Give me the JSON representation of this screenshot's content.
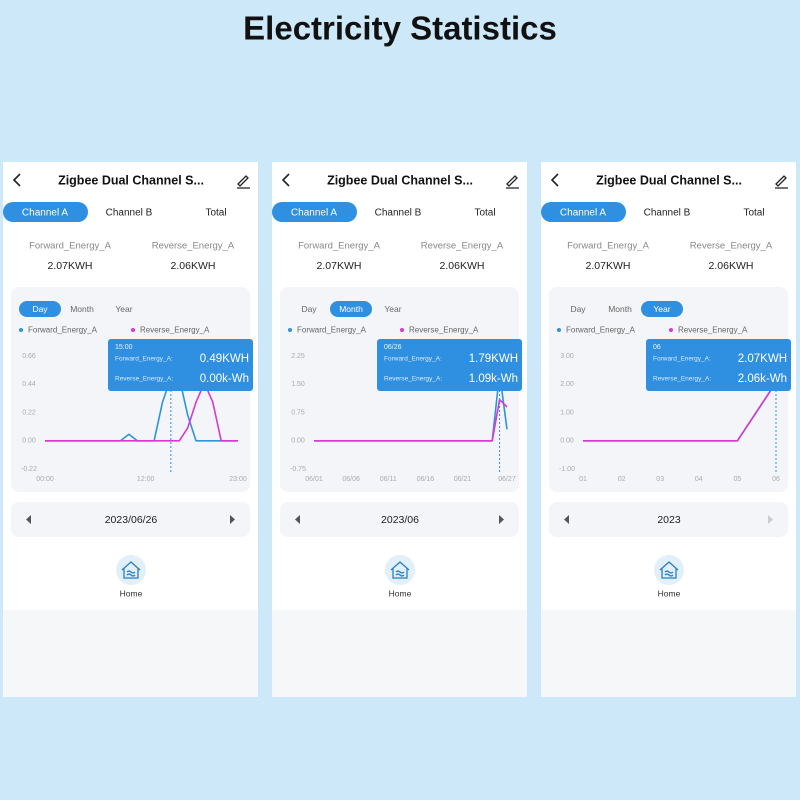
{
  "title": "Electricity Statistics",
  "screens": [
    {
      "header": "Zigbee Dual Channel S...",
      "tabs": [
        "Channel A",
        "Channel B",
        "Total"
      ],
      "active_tab": 0,
      "stats": [
        {
          "label": "Forward_Energy_A",
          "value": "2.07KWH"
        },
        {
          "label": "Reverse_Energy_A",
          "value": "2.06KWH"
        }
      ],
      "periods": [
        "Day",
        "Month",
        "Year"
      ],
      "active_period": 0,
      "chart": {
        "type": "line",
        "categories": [
          "00:00",
          null,
          null,
          null,
          null,
          null,
          null,
          null,
          null,
          null,
          null,
          null,
          "12:00",
          null,
          null,
          null,
          null,
          null,
          null,
          null,
          null,
          null,
          null,
          "23:00"
        ],
        "series": [
          {
            "name": "Forward_Energy_A",
            "color": "#2f95d6",
            "values": [
              0,
              0,
              0,
              0,
              0,
              0,
              0,
              0,
              0,
              0,
              0.05,
              0,
              0,
              0,
              0.3,
              0.49,
              0.49,
              0.2,
              0,
              0,
              0,
              0,
              0,
              0
            ]
          },
          {
            "name": "Reverse_Energy_A",
            "color": "#d63ad0",
            "values": [
              0,
              0,
              0,
              0,
              0,
              0,
              0,
              0,
              0,
              0,
              0,
              0,
              0,
              0,
              0,
              0,
              0,
              0.1,
              0.3,
              0.45,
              0.3,
              0,
              0,
              0
            ]
          }
        ],
        "ylim": [
          -0.22,
          0.66
        ],
        "yticks": [
          0.66,
          0.44,
          0.22,
          {
            "value": 0,
            "label": "0.00"
          },
          -0.22
        ]
      },
      "tooltip": {
        "index": 15,
        "title": "15:00",
        "rows": [
          {
            "label": "Forward_Energy_A:",
            "value": "0.49KWH"
          },
          {
            "label": "Reverse_Energy_A:",
            "value": "0.00k-Wh"
          }
        ]
      },
      "date": "2023/06/26",
      "nav": "Home"
    },
    {
      "header": "Zigbee Dual Channel S...",
      "tabs": [
        "Channel A",
        "Channel B",
        "Total"
      ],
      "active_tab": 0,
      "stats": [
        {
          "label": "Forward_Energy_A",
          "value": "2.07KWH"
        },
        {
          "label": "Reverse_Energy_A",
          "value": "2.06KWH"
        }
      ],
      "periods": [
        "Day",
        "Month",
        "Year"
      ],
      "active_period": 1,
      "chart": {
        "type": "line",
        "categories": [
          "06/01",
          null,
          null,
          null,
          null,
          "06/06",
          null,
          null,
          null,
          null,
          "06/11",
          null,
          null,
          null,
          null,
          "06/16",
          null,
          null,
          null,
          null,
          "06/21",
          null,
          null,
          null,
          null,
          null,
          "06/27"
        ],
        "series": [
          {
            "name": "Forward_Energy_A",
            "color": "#2f95d6",
            "values": [
              0,
              0,
              0,
              0,
              0,
              0,
              0,
              0,
              0,
              0,
              0,
              0,
              0,
              0,
              0,
              0,
              0,
              0,
              0,
              0,
              0,
              0,
              0,
              0,
              0,
              1.79,
              0.3
            ]
          },
          {
            "name": "Reverse_Energy_A",
            "color": "#d63ad0",
            "values": [
              0,
              0,
              0,
              0,
              0,
              0,
              0,
              0,
              0,
              0,
              0,
              0,
              0,
              0,
              0,
              0,
              0,
              0,
              0,
              0,
              0,
              0,
              0,
              0,
              0,
              1.09,
              0.9
            ]
          }
        ],
        "ylim": [
          -0.75,
          2.25
        ],
        "yticks": [
          2.25,
          {
            "value": 1.5,
            "label": "1.50"
          },
          0.75,
          {
            "value": 0,
            "label": "0.00"
          },
          -0.75
        ]
      },
      "tooltip": {
        "index": 25,
        "title": "06/26",
        "rows": [
          {
            "label": "Forward_Energy_A:",
            "value": "1.79KWH"
          },
          {
            "label": "Reverse_Energy_A:",
            "value": "1.09k-Wh"
          }
        ]
      },
      "date": "2023/06",
      "nav": "Home"
    },
    {
      "header": "Zigbee Dual Channel S...",
      "tabs": [
        "Channel A",
        "Channel B",
        "Total"
      ],
      "active_tab": 0,
      "stats": [
        {
          "label": "Forward_Energy_A",
          "value": "2.07KWH"
        },
        {
          "label": "Reverse_Energy_A",
          "value": "2.06KWH"
        }
      ],
      "periods": [
        "Day",
        "Month",
        "Year"
      ],
      "active_period": 2,
      "chart": {
        "type": "line",
        "categories": [
          "01",
          "02",
          "03",
          "04",
          "05",
          "06"
        ],
        "series": [
          {
            "name": "Forward_Energy_A",
            "color": "#2f95d6",
            "values": [
              0,
              0,
              0,
              0,
              0,
              2.07
            ]
          },
          {
            "name": "Reverse_Energy_A",
            "color": "#d63ad0",
            "values": [
              0,
              0,
              0,
              0,
              0,
              2.06
            ]
          }
        ],
        "ylim": [
          -1,
          3
        ],
        "yticks": [
          {
            "value": 3,
            "label": "3.00"
          },
          {
            "value": 2,
            "label": "2.00"
          },
          {
            "value": 1,
            "label": "1.00"
          },
          {
            "value": 0,
            "label": "0.00"
          },
          {
            "value": -1,
            "label": "-1.00"
          }
        ]
      },
      "tooltip": {
        "index": 5,
        "title": "06",
        "rows": [
          {
            "label": "Forward_Energy_A:",
            "value": "2.07KWH"
          },
          {
            "label": "Reverse_Energy_A:",
            "value": "2.06k-Wh"
          }
        ]
      },
      "date": "2023",
      "nav": "Home"
    }
  ]
}
